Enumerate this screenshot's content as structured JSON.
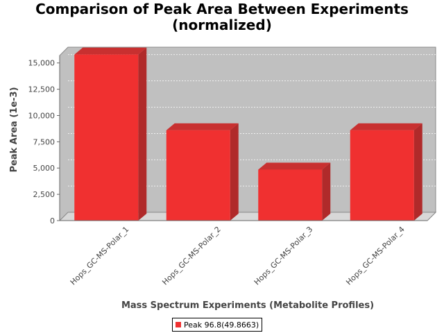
{
  "title_line1": "Comparison of Peak Area Between Experiments",
  "title_line2": "(normalized)",
  "chart_data": {
    "type": "bar",
    "title": "Comparison of Peak Area Between Experiments (normalized)",
    "xlabel": "Mass Spectrum Experiments (Metabolite Profiles)",
    "ylabel": "Peak Area (1e-3)",
    "categories": [
      "Hops_GC-MS-Polar_1",
      "Hops_GC-MS-Polar_2",
      "Hops_GC-MS-Polar_3",
      "Hops_GC-MS-Polar_4"
    ],
    "series": [
      {
        "name": "Peak 96.8(49.8663)",
        "values": [
          15800,
          8600,
          4850,
          8600
        ],
        "color": "#f03030"
      }
    ],
    "ylim": [
      0,
      16500
    ],
    "yticks": [
      0,
      2500,
      5000,
      7500,
      10000,
      12500,
      15000
    ],
    "ytick_labels": [
      "0",
      "2,500",
      "5,000",
      "7,500",
      "10,000",
      "12,500",
      "15,000"
    ],
    "grid": true,
    "legend_position": "bottom",
    "plot_background": "#c0c0c0",
    "bar_side_color": "#b02a2a",
    "bar_top_color": "#c83030"
  }
}
